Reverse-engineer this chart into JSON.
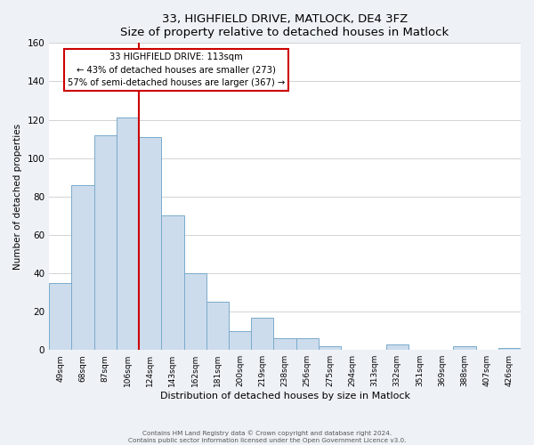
{
  "title": "33, HIGHFIELD DRIVE, MATLOCK, DE4 3FZ",
  "subtitle": "Size of property relative to detached houses in Matlock",
  "xlabel": "Distribution of detached houses by size in Matlock",
  "ylabel": "Number of detached properties",
  "bar_labels": [
    "49sqm",
    "68sqm",
    "87sqm",
    "106sqm",
    "124sqm",
    "143sqm",
    "162sqm",
    "181sqm",
    "200sqm",
    "219sqm",
    "238sqm",
    "256sqm",
    "275sqm",
    "294sqm",
    "313sqm",
    "332sqm",
    "351sqm",
    "369sqm",
    "388sqm",
    "407sqm",
    "426sqm"
  ],
  "bar_values": [
    35,
    86,
    112,
    121,
    111,
    70,
    40,
    25,
    10,
    17,
    6,
    6,
    2,
    0,
    0,
    3,
    0,
    0,
    2,
    0,
    1
  ],
  "bar_color": "#ccdcec",
  "bar_edge_color": "#7aaacc",
  "vline_x": 3.5,
  "vline_color": "#cc0000",
  "annotation_title": "33 HIGHFIELD DRIVE: 113sqm",
  "annotation_line1": "← 43% of detached houses are smaller (273)",
  "annotation_line2": "57% of semi-detached houses are larger (367) →",
  "annotation_box_color": "#ffffff",
  "annotation_box_edge": "#cc0000",
  "ylim": [
    0,
    160
  ],
  "yticks": [
    0,
    20,
    40,
    60,
    80,
    100,
    120,
    140,
    160
  ],
  "footer1": "Contains HM Land Registry data © Crown copyright and database right 2024.",
  "footer2": "Contains public sector information licensed under the Open Government Licence v3.0.",
  "background_color": "#eef2f7",
  "plot_background_color": "#ffffff",
  "figsize": [
    6.0,
    5.0
  ],
  "dpi": 100
}
